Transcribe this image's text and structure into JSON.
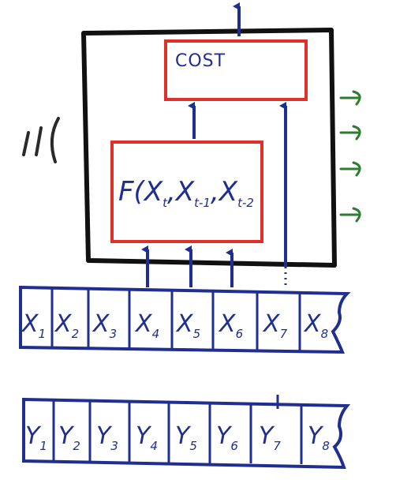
{
  "cost_box": {
    "label": "COST"
  },
  "function_box": {
    "label": "F(",
    "args": [
      {
        "base": "X",
        "sub": "t"
      },
      {
        "base": "X",
        "sub": "t-1"
      },
      {
        "base": "X",
        "sub": "t-2"
      }
    ]
  },
  "x_tape": {
    "cells": [
      {
        "base": "X",
        "sub": "1"
      },
      {
        "base": "X",
        "sub": "2"
      },
      {
        "base": "X",
        "sub": "3"
      },
      {
        "base": "X",
        "sub": "4"
      },
      {
        "base": "X",
        "sub": "5"
      },
      {
        "base": "X",
        "sub": "6"
      },
      {
        "base": "X",
        "sub": "7"
      },
      {
        "base": "X",
        "sub": "8"
      }
    ]
  },
  "y_tape": {
    "cells": [
      {
        "base": "Y",
        "sub": "1"
      },
      {
        "base": "Y",
        "sub": "2"
      },
      {
        "base": "Y",
        "sub": "3"
      },
      {
        "base": "Y",
        "sub": "4"
      },
      {
        "base": "Y",
        "sub": "5"
      },
      {
        "base": "Y",
        "sub": "6"
      },
      {
        "base": "Y",
        "sub": "7"
      },
      {
        "base": "Y",
        "sub": "8"
      }
    ]
  },
  "colors": {
    "ink_blue": "#1f2f8f",
    "ink_black": "#111111",
    "ink_red": "#e0302a",
    "ink_green": "#2e7d2e"
  }
}
